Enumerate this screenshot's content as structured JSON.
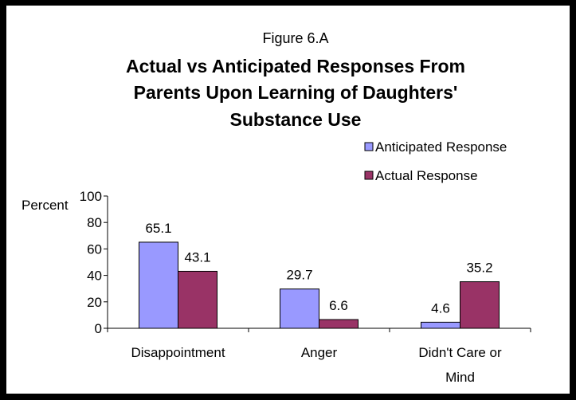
{
  "chart_data": {
    "type": "bar",
    "figure_label": "Figure 6.A",
    "title_lines": [
      "Actual vs Anticipated Responses From",
      "Parents Upon Learning of Daughters'",
      "Substance Use"
    ],
    "ylabel": "Percent",
    "ylim": [
      0,
      100
    ],
    "yticks": [
      "0",
      "20",
      "40",
      "60",
      "80",
      "100"
    ],
    "categories": [
      [
        "Disappointment"
      ],
      [
        "Anger"
      ],
      [
        "Didn't Care or",
        "Mind"
      ]
    ],
    "series": [
      {
        "name": "Anticipated Response",
        "color": "#9999ff",
        "values": [
          65.1,
          29.7,
          4.6
        ],
        "labels": [
          "65.1",
          "29.7",
          "4.6"
        ]
      },
      {
        "name": "Actual Response",
        "color": "#993366",
        "values": [
          43.1,
          6.6,
          35.2
        ],
        "labels": [
          "43.1",
          "6.6",
          "35.2"
        ]
      }
    ],
    "legend_position": "top-right",
    "grid": false
  }
}
